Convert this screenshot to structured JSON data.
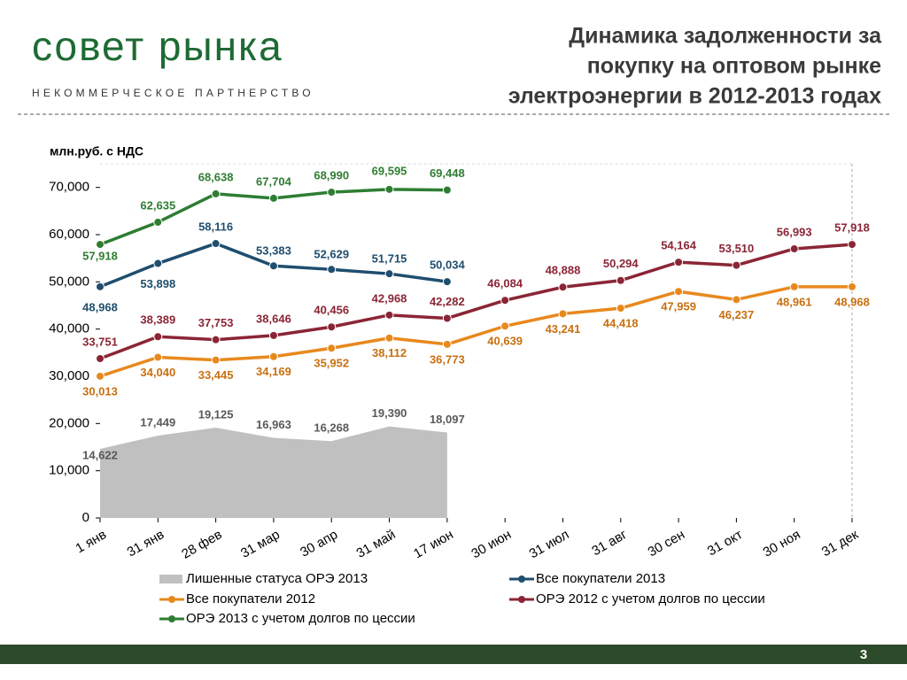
{
  "header": {
    "logo": "совет рынка",
    "tagline": "НЕКОММЕРЧЕСКОЕ ПАРТНЕРСТВО",
    "title_lines": [
      "Динамика задолженности за",
      "покупку на оптовом рынке",
      "электроэнергии в 2012-2013 годах"
    ]
  },
  "page_number": 3,
  "chart_data": {
    "type": "line",
    "y_label": "млн.руб. с НДС",
    "categories": [
      "1 янв",
      "31 янв",
      "28 фев",
      "31 мар",
      "30 апр",
      "31 май",
      "17 июн",
      "30 июн",
      "31 июл",
      "31 авг",
      "30 сен",
      "31 окт",
      "30 ноя",
      "31 дек"
    ],
    "ylim": [
      0,
      75000
    ],
    "yticks": [
      0,
      {
        "value": 10000,
        "label": "10,000"
      },
      {
        "value": 20000,
        "label": "20,000"
      },
      {
        "value": 30000,
        "label": "30,000"
      },
      {
        "value": 40000,
        "label": "40,000"
      },
      {
        "value": 50000,
        "label": "50,000"
      },
      {
        "value": 60000,
        "label": "60,000"
      },
      {
        "value": 70000,
        "label": "70,000"
      }
    ],
    "grid": false,
    "series": [
      {
        "name": "Лишенные статуса ОРЭ 2013",
        "style": "area",
        "color": "#c0c0c0",
        "label_color": "#595959",
        "values": [
          14622,
          17449,
          19125,
          16963,
          16268,
          19390,
          18097,
          null,
          null,
          null,
          null,
          null,
          null,
          null
        ],
        "value_labels": [
          "14,622",
          "17,449",
          "19,125",
          "16,963",
          "16,268",
          "19,390",
          "18,097",
          null,
          null,
          null,
          null,
          null,
          null,
          null
        ]
      },
      {
        "name": "Все покупатели 2013",
        "style": "line",
        "color": "#1f4e6e",
        "values": [
          48968,
          53898,
          58116,
          53383,
          52629,
          51715,
          50034,
          null,
          null,
          null,
          null,
          null,
          null,
          null
        ],
        "value_labels": [
          "48,968",
          "53,898",
          "58,116",
          "53,383",
          "52,629",
          "51,715",
          "50,034",
          null,
          null,
          null,
          null,
          null,
          null,
          null
        ]
      },
      {
        "name": "Все покупатели 2012",
        "style": "line",
        "color": "#e8891d",
        "label_color": "#c8700f",
        "values": [
          30013,
          34040,
          33445,
          34169,
          35952,
          38112,
          36773,
          40639,
          43241,
          44418,
          47959,
          46237,
          48961,
          48968
        ],
        "value_labels": [
          "30,013",
          "34,040",
          "33,445",
          "34,169",
          "35,952",
          "38,112",
          "36,773",
          "40,639",
          "43,241",
          "44,418",
          "47,959",
          "46,237",
          "48,961",
          "48,968"
        ]
      },
      {
        "name": "ОРЭ 2012 с учетом долгов по цессии",
        "style": "line",
        "color": "#8b2535",
        "values": [
          33751,
          38389,
          37753,
          38646,
          40456,
          42968,
          42282,
          46084,
          48888,
          50294,
          54164,
          53510,
          56993,
          57918
        ],
        "value_labels": [
          "33,751",
          "38,389",
          "37,753",
          "38,646",
          "40,456",
          "42,968",
          "42,282",
          "46,084",
          "48,888",
          "50,294",
          "54,164",
          "53,510",
          "56,993",
          "57,918"
        ]
      },
      {
        "name": "ОРЭ 2013 с учетом долгов по цессии",
        "style": "line",
        "color": "#2e7d32",
        "values": [
          57918,
          62635,
          68638,
          67704,
          68990,
          69595,
          69448,
          null,
          null,
          null,
          null,
          null,
          null,
          null
        ],
        "value_labels": [
          "57,918",
          "62,635",
          "68,638",
          "67,704",
          "68,990",
          "69,595",
          "69,448",
          null,
          null,
          null,
          null,
          null,
          null,
          null
        ]
      }
    ]
  }
}
